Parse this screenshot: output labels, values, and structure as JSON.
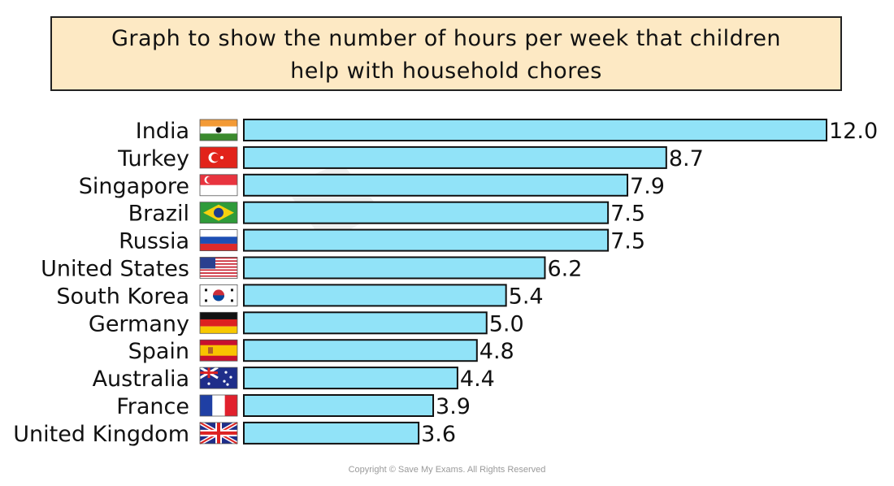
{
  "chart_data": {
    "type": "bar",
    "orientation": "horizontal",
    "title_lines": [
      "Graph to show the number of hours per week that children",
      "help with household chores"
    ],
    "categories": [
      "India",
      "Turkey",
      "Singapore",
      "Brazil",
      "Russia",
      "United States",
      "South Korea",
      "Germany",
      "Spain",
      "Australia",
      "France",
      "United Kingdom"
    ],
    "values": [
      12.0,
      8.7,
      7.9,
      7.5,
      7.5,
      6.2,
      5.4,
      5.0,
      4.8,
      4.4,
      3.9,
      3.6
    ],
    "value_labels": [
      "12.0",
      "8.7",
      "7.9",
      "7.5",
      "7.5",
      "6.2",
      "5.4",
      "5.0",
      "4.8",
      "4.4",
      "3.9",
      "3.6"
    ],
    "flag_icons": [
      "india-flag-icon",
      "turkey-flag-icon",
      "singapore-flag-icon",
      "brazil-flag-icon",
      "russia-flag-icon",
      "united-states-flag-icon",
      "south-korea-flag-icon",
      "germany-flag-icon",
      "spain-flag-icon",
      "australia-flag-icon",
      "france-flag-icon",
      "united-kingdom-flag-icon"
    ],
    "xlim": [
      0,
      12
    ],
    "bar_color": "#91e3f8",
    "title_background": "#fde9c4",
    "grid": false,
    "legend": "none"
  },
  "watermark": "Save My Exams",
  "copyright": "Copyright © Save My Exams. All Rights Reserved"
}
